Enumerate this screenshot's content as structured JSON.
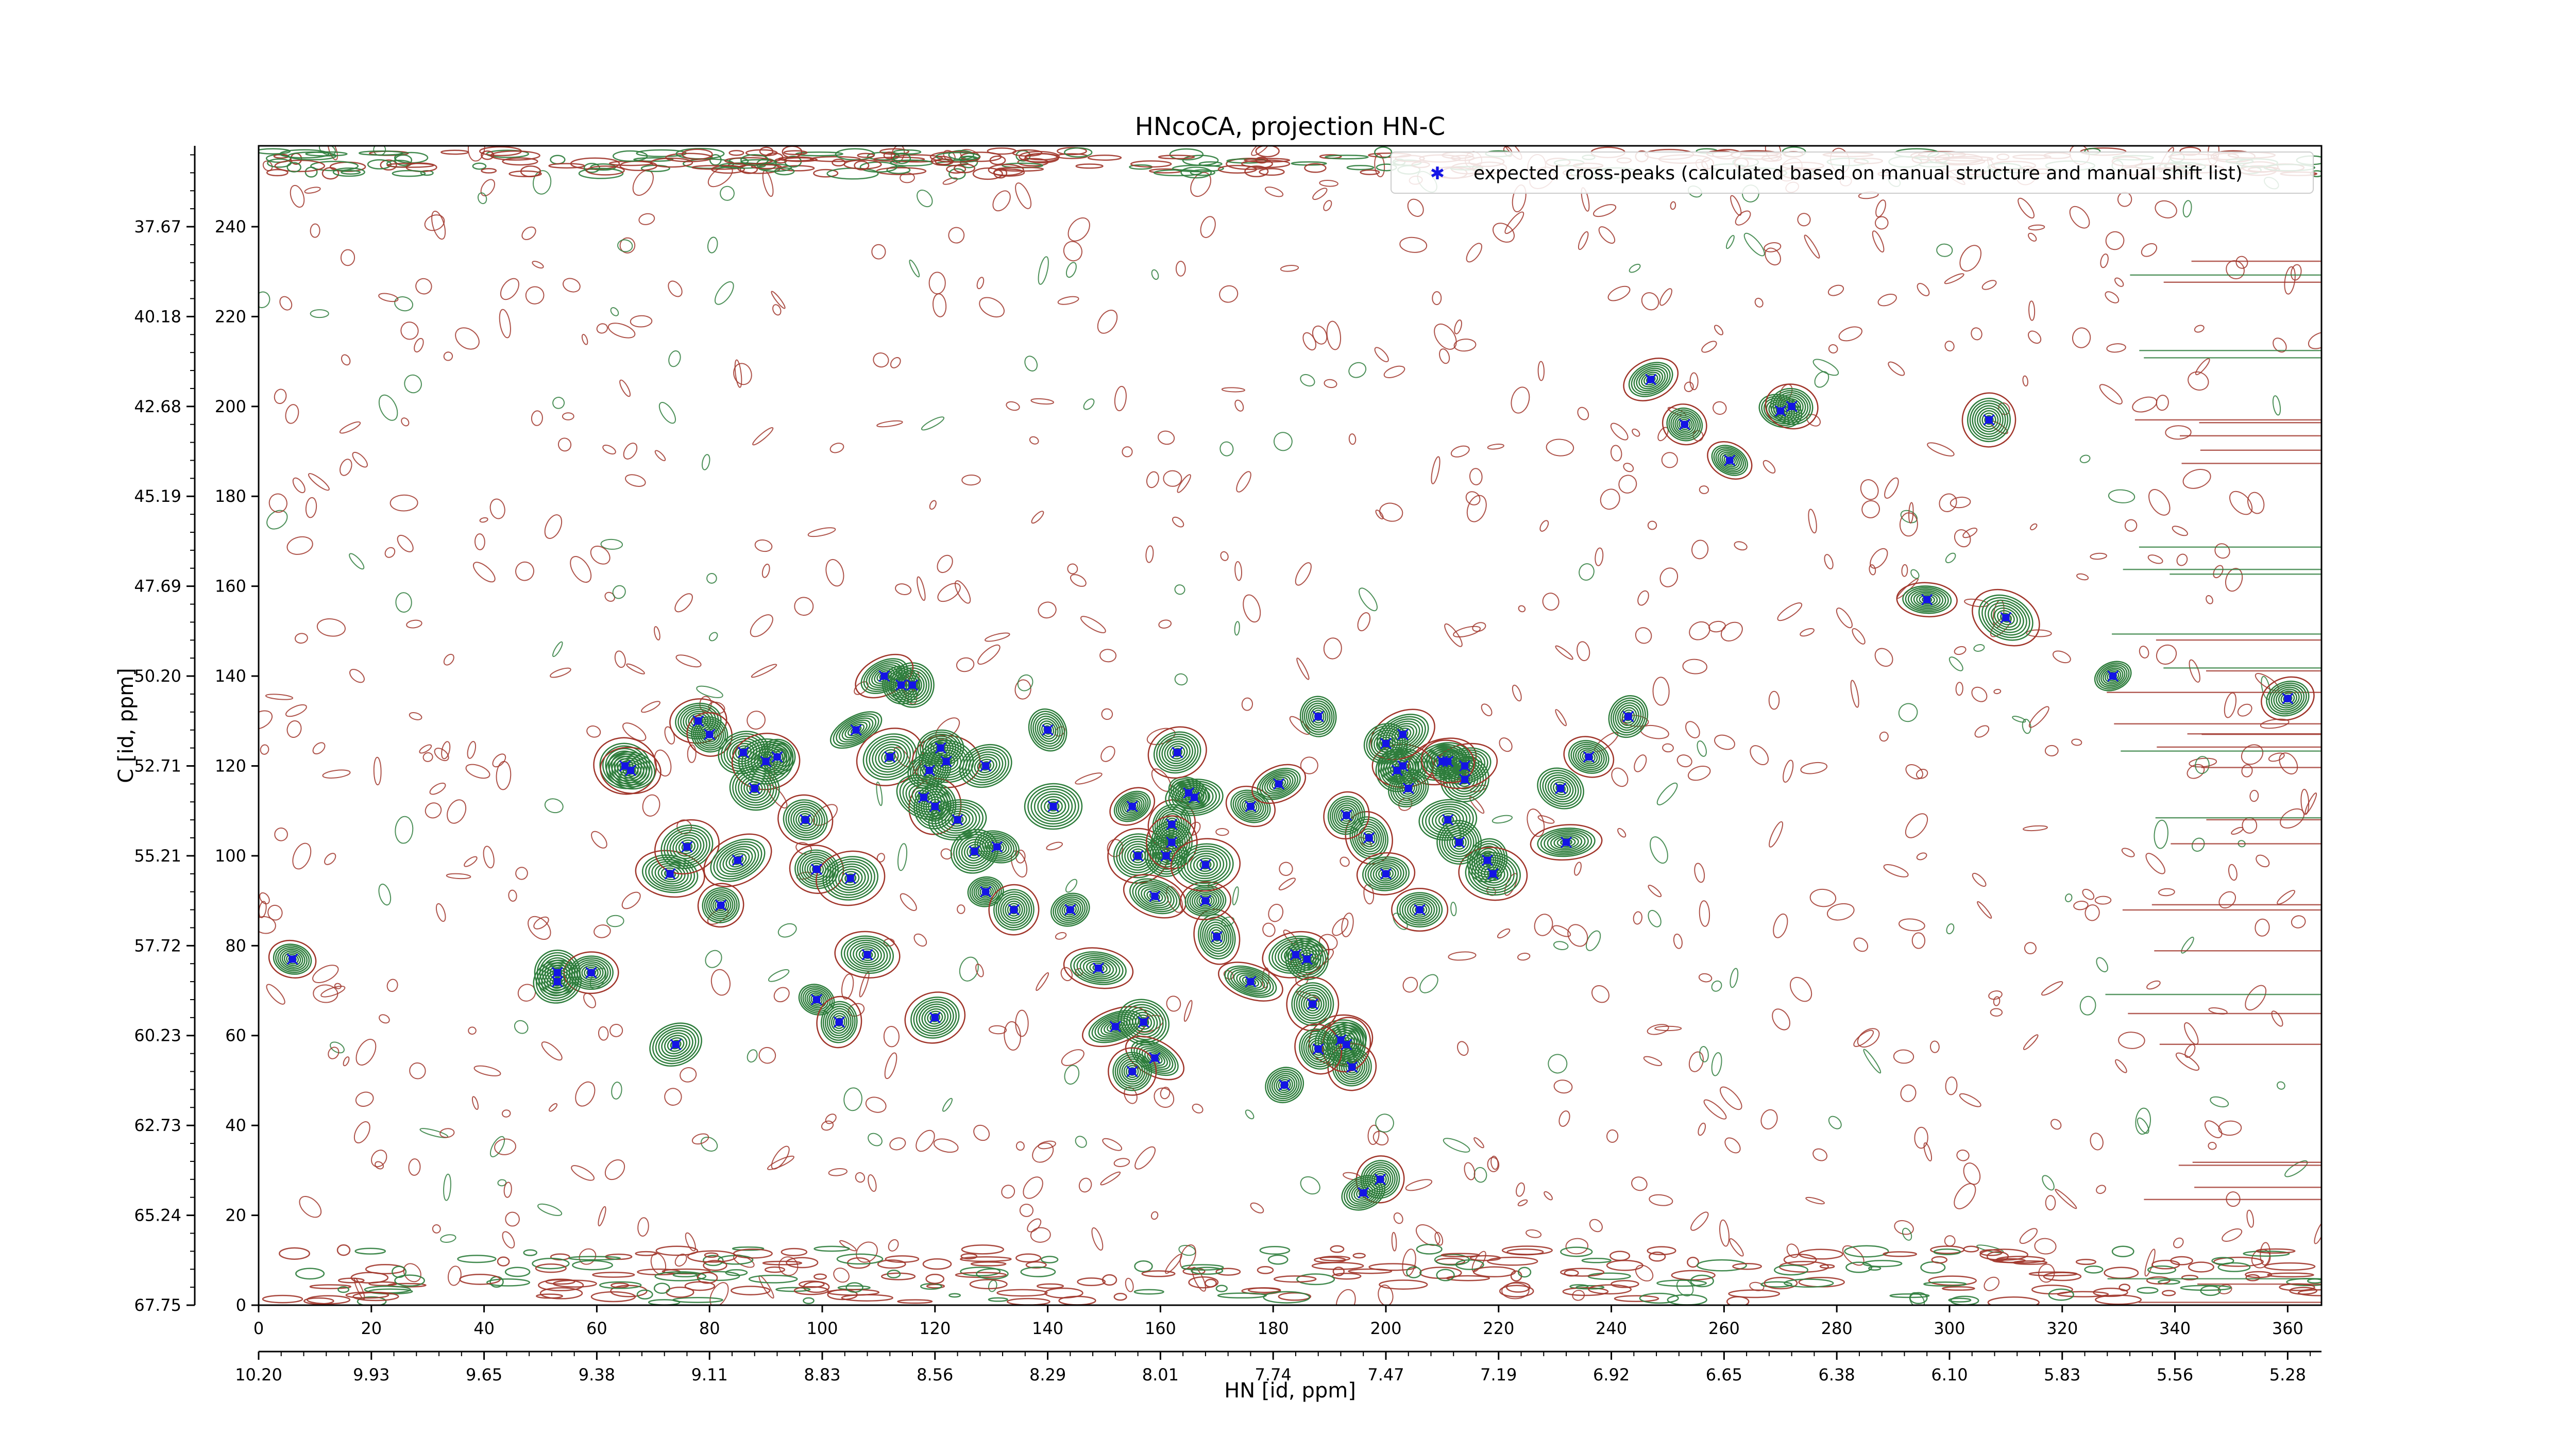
{
  "chart_data": {
    "type": "scatter",
    "title": "HNcoCA, projection HN-C",
    "xlabel": "HN [id, ppm]",
    "ylabel": "C [id, ppm]",
    "legend": {
      "placement": "top-right",
      "label": "expected cross-peaks (calculated based on manual structure and manual shift list)",
      "marker_color": "#1414e6"
    },
    "colors": {
      "positive_contours": "#2e7d3c",
      "negative_contours": "#a0352a",
      "peaks": "#1414e6"
    },
    "xlim": [
      0,
      366
    ],
    "ylim": [
      0,
      258
    ],
    "x_index_ticks": [
      "0",
      "20",
      "40",
      "60",
      "80",
      "100",
      "120",
      "140",
      "160",
      "180",
      "200",
      "220",
      "240",
      "260",
      "280",
      "300",
      "320",
      "340",
      "360"
    ],
    "x_ppm_ticks": [
      "10.20",
      "9.93",
      "9.65",
      "9.38",
      "9.11",
      "8.83",
      "8.56",
      "8.29",
      "8.01",
      "7.74",
      "7.47",
      "7.19",
      "6.92",
      "6.65",
      "6.38",
      "6.10",
      "5.83",
      "5.56",
      "5.28"
    ],
    "y_index_ticks": [
      "0",
      "20",
      "40",
      "60",
      "80",
      "100",
      "120",
      "140",
      "160",
      "180",
      "200",
      "220",
      "240"
    ],
    "y_ppm_ticks": [
      "67.75",
      "65.24",
      "62.73",
      "60.23",
      "57.72",
      "55.21",
      "52.71",
      "50.20",
      "47.69",
      "45.19",
      "42.68",
      "40.18",
      "37.67"
    ],
    "peaks": {
      "x": [
        6,
        53,
        59,
        65,
        53,
        66,
        73,
        74,
        76,
        78,
        80,
        86,
        90,
        82,
        85,
        88,
        99,
        97,
        99,
        92,
        103,
        108,
        106,
        112,
        105,
        122,
        127,
        120,
        119,
        118,
        120,
        121,
        124,
        129,
        134,
        141,
        149,
        152,
        157,
        159,
        155,
        156,
        155,
        159,
        162,
        161,
        170,
        176,
        184,
        192,
        194,
        193,
        197,
        200,
        206,
        202,
        210,
        214,
        214,
        218,
        203,
        211,
        219,
        231,
        232,
        236,
        243,
        247,
        253,
        261,
        270,
        272,
        296,
        307,
        310,
        329,
        360,
        168,
        166,
        116,
        111,
        114,
        131,
        129,
        140,
        144,
        165,
        181,
        163,
        162,
        168,
        186,
        187,
        182,
        188,
        176,
        204,
        203,
        200,
        193,
        211,
        213,
        199,
        196,
        188
      ],
      "y": [
        77,
        74,
        74,
        120,
        72,
        119,
        96,
        58,
        102,
        130,
        127,
        123,
        121,
        89,
        99,
        115,
        97,
        108,
        68,
        122,
        63,
        78,
        128,
        122,
        95,
        121,
        101,
        111,
        119,
        113,
        64,
        124,
        108,
        92,
        88,
        111,
        75,
        62,
        63,
        55,
        52,
        100,
        111,
        91,
        107,
        100,
        82,
        111,
        78,
        59,
        53,
        58,
        104,
        96,
        88,
        119,
        121,
        117,
        120,
        99,
        120,
        121,
        96,
        115,
        103,
        122,
        131,
        206,
        196,
        188,
        199,
        200,
        157,
        197,
        153,
        140,
        135,
        90,
        113,
        138,
        140,
        138,
        102,
        120,
        128,
        88,
        114,
        116,
        123,
        103,
        98,
        77,
        67,
        49,
        57,
        72,
        115,
        127,
        125,
        109,
        108,
        103,
        28,
        25,
        131
      ]
    }
  }
}
